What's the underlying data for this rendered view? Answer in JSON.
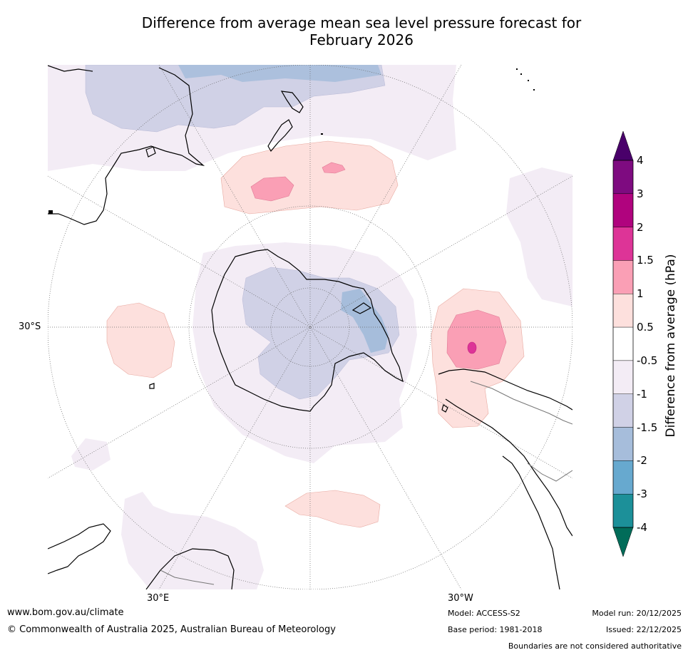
{
  "title_line1": "Difference from average mean sea level pressure forecast for",
  "title_line2": "February 2026",
  "labels": {
    "lat_30s": "30°S",
    "lon_30e": "30°E",
    "lon_30w": "30°W"
  },
  "colorbar": {
    "label": "Difference from average (hPa)",
    "ticks": [
      "4",
      "3",
      "2",
      "1.5",
      "1",
      "0.5",
      "-0.5",
      "-1",
      "-1.5",
      "-2",
      "-3",
      "-4"
    ],
    "colors": [
      "#7e0b80",
      "#b0037e",
      "#dd3497",
      "#fa9fb5",
      "#fde0dd",
      "#ffffff",
      "#f3ecf5",
      "#d0d1e6",
      "#a6bddb",
      "#67a9cf",
      "#1c9099"
    ],
    "over_color": "#49006a",
    "under_color": "#016c59"
  },
  "footer": {
    "website": "www.bom.gov.au/climate",
    "copyright": "© Commonwealth of Australia 2025, Australian Bureau of Meteorology",
    "model": "Model: ACCESS-S2",
    "base_period": "Base period: 1981-2018",
    "model_run": "Model run: 20/12/2025",
    "issued": "Issued: 22/12/2025",
    "disclaimer": "Boundaries are not considered authoritative"
  }
}
